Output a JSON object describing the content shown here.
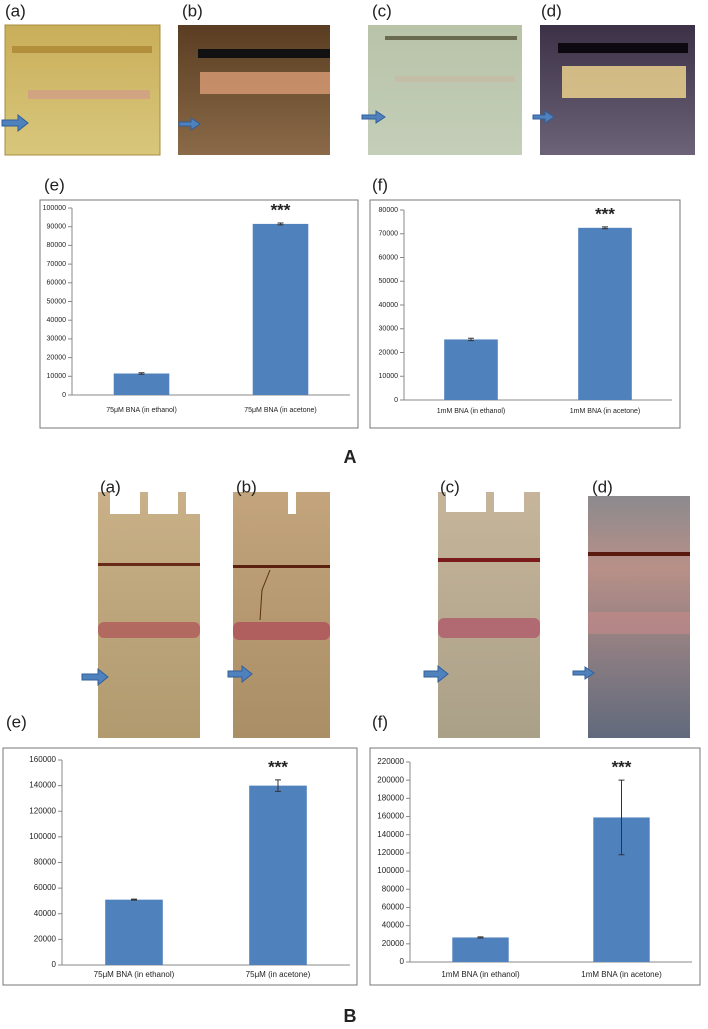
{
  "figure": {
    "A": {
      "label": "A",
      "gel_labels": [
        "(a)",
        "(b)",
        "(c)",
        "(d)"
      ],
      "chart_labels": [
        "(e)",
        "(f)"
      ]
    },
    "B": {
      "label": "B",
      "gel_labels": [
        "(a)",
        "(b)",
        "(c)",
        "(d)"
      ],
      "chart_labels": [
        "(e)",
        "(f)"
      ]
    }
  },
  "chart_data": [
    {
      "type": "bar",
      "categories": [
        "75μM BNA (in ethanol)",
        "75μM BNA (in acetone)"
      ],
      "values": [
        11500,
        91500
      ],
      "errors": [
        400,
        500
      ],
      "color": "#4f81bd",
      "ylim": [
        0,
        100000
      ],
      "yticks": [
        0,
        10000,
        20000,
        30000,
        40000,
        50000,
        60000,
        70000,
        80000,
        90000,
        100000
      ],
      "annotations": [
        {
          "text": "***",
          "x": "75μM BNA (in acetone)"
        }
      ]
    },
    {
      "type": "bar",
      "categories": [
        "1mM BNA (in ethanol)",
        "1mM BNA (in acetone)"
      ],
      "values": [
        25500,
        72500
      ],
      "errors": [
        500,
        400
      ],
      "color": "#4f81bd",
      "ylim": [
        0,
        80000
      ],
      "yticks": [
        0,
        10000,
        20000,
        30000,
        40000,
        50000,
        60000,
        70000,
        80000
      ],
      "annotations": [
        {
          "text": "***",
          "x": "1mM BNA (in acetone)"
        }
      ]
    },
    {
      "type": "bar",
      "categories": [
        "75μM BNA (in ethanol)",
        "75μM (in acetone)"
      ],
      "values": [
        51000,
        140000
      ],
      "errors": [
        400,
        4500
      ],
      "color": "#4f81bd",
      "ylim": [
        0,
        160000
      ],
      "yticks": [
        0,
        20000,
        40000,
        60000,
        80000,
        100000,
        120000,
        140000,
        160000
      ],
      "annotations": [
        {
          "text": "***",
          "x": "75μM (in acetone)"
        }
      ]
    },
    {
      "type": "bar",
      "categories": [
        "1mM BNA (in ethanol)",
        "1mM BNA (in acetone)"
      ],
      "values": [
        27000,
        159000
      ],
      "errors": [
        600,
        41000
      ],
      "color": "#4f81bd",
      "ylim": [
        0,
        220000
      ],
      "yticks": [
        0,
        20000,
        40000,
        60000,
        80000,
        100000,
        120000,
        140000,
        160000,
        180000,
        200000,
        220000
      ],
      "annotations": [
        {
          "text": "***",
          "x": "1mM BNA (in acetone)"
        }
      ]
    }
  ]
}
